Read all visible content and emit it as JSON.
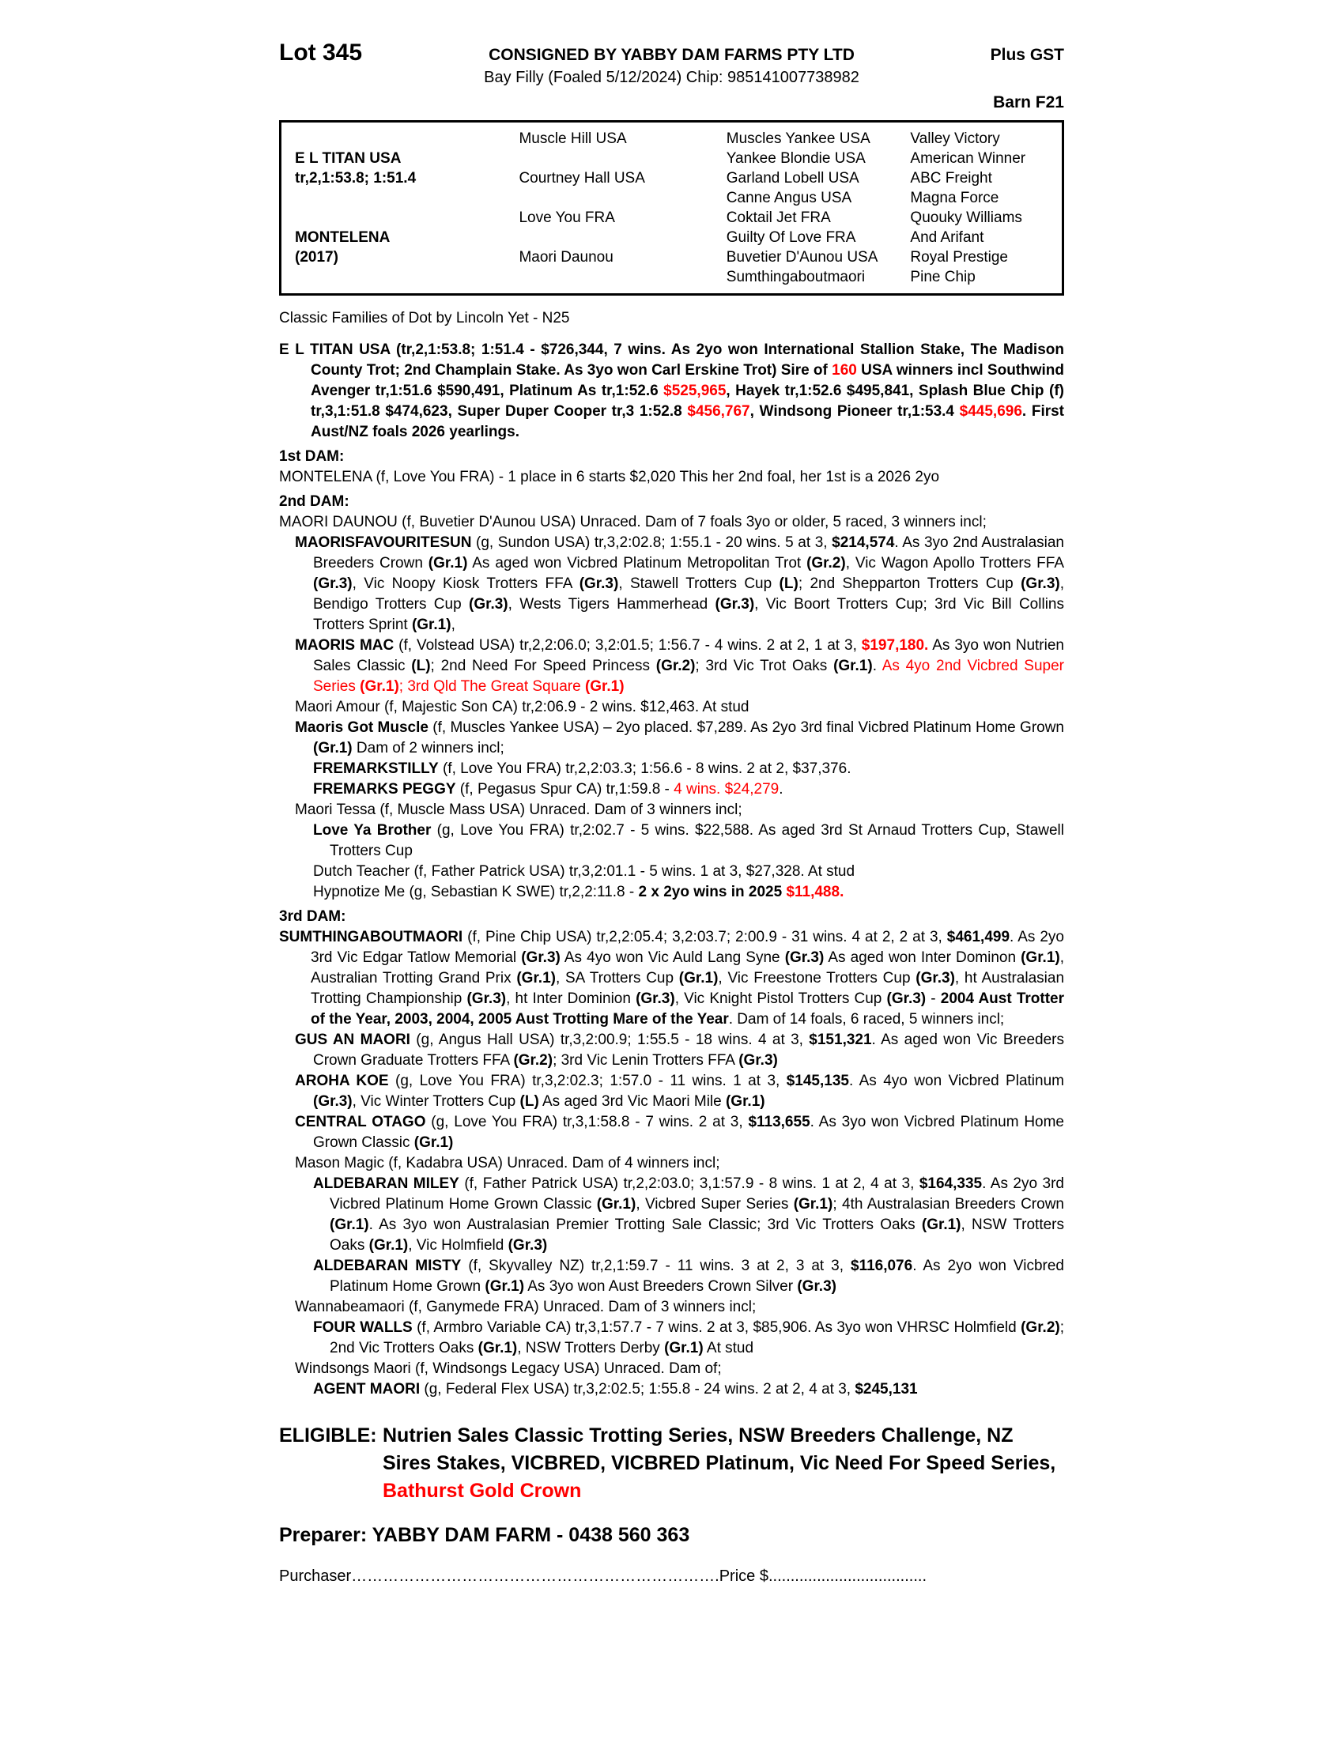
{
  "colors": {
    "red": "#ff0000",
    "text": "#000000",
    "background": "#ffffff"
  },
  "header": {
    "lot": "Lot 345",
    "consigned": "CONSIGNED BY YABBY DAM FARMS PTY LTD",
    "plus_gst": "Plus GST",
    "foal_info": "Bay Filly (Foaled 5/12/2024) Chip: 985141007738982",
    "barn": "Barn F21"
  },
  "pedigree_table": {
    "rows": [
      [
        "",
        "Muscle Hill USA",
        "Muscles Yankee USA",
        "Valley Victory"
      ],
      [
        "E L TITAN USA",
        "",
        "Yankee Blondie USA",
        "American Winner"
      ],
      [
        "tr,2,1:53.8; 1:51.4",
        "Courtney Hall USA",
        "Garland Lobell USA",
        "ABC Freight"
      ],
      [
        "",
        "",
        "Canne Angus USA",
        "Magna Force"
      ],
      [
        "",
        "Love You FRA",
        "Coktail Jet FRA",
        "Quouky Williams"
      ],
      [
        "MONTELENA",
        "",
        "Guilty Of Love FRA",
        "And Arifant"
      ],
      [
        "(2017)",
        "Maori Daunou",
        "Buvetier D'Aunou USA",
        "Royal Prestige"
      ],
      [
        "",
        "",
        "Sumthingaboutmaori",
        "Pine Chip"
      ]
    ]
  },
  "family_line": "Classic Families of Dot by Lincoln Yet - N25",
  "body_blocks": [
    {
      "type": "para",
      "ind": 0,
      "cls": "sire",
      "name": "sire-summary",
      "segments": [
        [
          "E L TITAN USA (tr,2,1:53.8; 1:51.4 - $726,344, 7 wins. As 2yo won International Stallion Stake, The Madison County Trot; 2nd Champlain Stake. As 3yo won Carl Erskine Trot) Sire of ",
          ""
        ],
        [
          "160",
          "r"
        ],
        [
          " USA winners incl Southwind Avenger tr,1:51.6 $590,491, Platinum As tr,1:52.6 ",
          ""
        ],
        [
          "$525,965",
          "r"
        ],
        [
          ", Hayek tr,1:52.6 $495,841, Splash Blue Chip (f) tr,3,1:51.8 $474,623, Super Duper Cooper tr,3 1:52.8 ",
          ""
        ],
        [
          "$456,767",
          "r"
        ],
        [
          ", Windsong Pioneer tr,1:53.4 ",
          ""
        ],
        [
          "$445,696",
          "r"
        ],
        [
          ". First Aust/NZ foals 2026 yearlings.",
          ""
        ]
      ]
    },
    {
      "type": "heading",
      "ind": 0,
      "name": "dam-heading-1",
      "segments": [
        [
          "1st DAM:",
          ""
        ]
      ]
    },
    {
      "type": "para",
      "ind": 0,
      "name": "dam-entry-montelena",
      "segments": [
        [
          "MONTELENA (f, Love You FRA) - 1 place in 6 starts $2,020 This her 2nd foal, her 1st is a 2026 2yo",
          ""
        ]
      ]
    },
    {
      "type": "heading",
      "ind": 0,
      "name": "dam-heading-2",
      "segments": [
        [
          "2nd DAM:",
          ""
        ]
      ]
    },
    {
      "type": "para",
      "ind": 0,
      "name": "dam-entry-maori-daunou",
      "segments": [
        [
          "MAORI DAUNOU (f, Buvetier D'Aunou USA) Unraced. Dam of 7 foals 3yo or older, 5 raced, 3 winners incl;",
          ""
        ]
      ]
    },
    {
      "type": "para",
      "ind": 1,
      "name": "progeny-maorisfavouritesun",
      "segments": [
        [
          "MAORISFAVOURITESUN",
          "b"
        ],
        [
          " (g, Sundon USA) tr,3,2:02.8; 1:55.1 - 20 wins. 5 at 3, ",
          ""
        ],
        [
          "$214,574",
          "b"
        ],
        [
          ". As 3yo 2nd Australasian Breeders Crown ",
          ""
        ],
        [
          "(Gr.1)",
          "b"
        ],
        [
          " As aged won Vicbred Platinum Metropolitan Trot ",
          ""
        ],
        [
          "(Gr.2)",
          "b"
        ],
        [
          ", Vic Wagon Apollo Trotters FFA ",
          ""
        ],
        [
          "(Gr.3)",
          "b"
        ],
        [
          ", Vic Noopy Kiosk Trotters FFA ",
          ""
        ],
        [
          "(Gr.3)",
          "b"
        ],
        [
          ", Stawell Trotters Cup ",
          ""
        ],
        [
          "(L)",
          "b"
        ],
        [
          "; 2nd Shepparton Trotters Cup ",
          ""
        ],
        [
          "(Gr.3)",
          "b"
        ],
        [
          ", Bendigo Trotters Cup ",
          ""
        ],
        [
          "(Gr.3)",
          "b"
        ],
        [
          ", Wests Tigers Hammerhead ",
          ""
        ],
        [
          "(Gr.3)",
          "b"
        ],
        [
          ", Vic Boort Trotters Cup; 3rd Vic Bill Collins Trotters Sprint ",
          ""
        ],
        [
          "(Gr.1)",
          "b"
        ],
        [
          ",",
          ""
        ]
      ]
    },
    {
      "type": "para",
      "ind": 1,
      "name": "progeny-maoris-mac",
      "segments": [
        [
          "MAORIS MAC",
          "b"
        ],
        [
          " (f, Volstead USA) tr,2,2:06.0; 3,2:01.5; 1:56.7 - 4 wins. 2 at 2, 1 at 3, ",
          ""
        ],
        [
          "$197,180.",
          "br"
        ],
        [
          " As 3yo won Nutrien Sales Classic ",
          ""
        ],
        [
          "(L)",
          "b"
        ],
        [
          "; 2nd Need For Speed Princess ",
          ""
        ],
        [
          "(Gr.2)",
          "b"
        ],
        [
          "; 3rd Vic Trot Oaks ",
          ""
        ],
        [
          "(Gr.1)",
          "b"
        ],
        [
          ". ",
          ""
        ],
        [
          "As 4yo 2nd Vicbred Super Series ",
          "r"
        ],
        [
          "(Gr.1)",
          "br"
        ],
        [
          "; 3rd Qld The Great Square ",
          "r"
        ],
        [
          "(Gr.1)",
          "br"
        ]
      ]
    },
    {
      "type": "para",
      "ind": 1,
      "name": "progeny-maori-amour",
      "segments": [
        [
          "Maori Amour (f, Majestic Son CA) tr,2:06.9 - 2 wins. $12,463. At stud",
          ""
        ]
      ]
    },
    {
      "type": "para",
      "ind": 1,
      "name": "progeny-maoris-got-muscle",
      "segments": [
        [
          "Maoris Got Muscle",
          "b"
        ],
        [
          " (f, Muscles Yankee USA) – 2yo placed. $7,289. As 2yo 3rd final Vicbred Platinum Home Grown ",
          ""
        ],
        [
          "(Gr.1)",
          "b"
        ],
        [
          " Dam of 2 winners incl;",
          ""
        ]
      ]
    },
    {
      "type": "para",
      "ind": 2,
      "name": "progeny-fremarkstilly",
      "segments": [
        [
          "FREMARKSTILLY",
          "b"
        ],
        [
          " (f, Love You FRA) tr,2,2:03.3; 1:56.6 - 8 wins. 2 at 2, $37,376.",
          ""
        ]
      ]
    },
    {
      "type": "para",
      "ind": 2,
      "name": "progeny-fremarks-peggy",
      "segments": [
        [
          "FREMARKS PEGGY",
          "b"
        ],
        [
          " (f, Pegasus Spur CA) tr,1:59.8 - ",
          ""
        ],
        [
          "4 wins. $24,279",
          "r"
        ],
        [
          ".",
          ""
        ]
      ]
    },
    {
      "type": "para",
      "ind": 1,
      "name": "progeny-maori-tessa",
      "segments": [
        [
          "Maori Tessa (f, Muscle Mass USA) Unraced.  Dam of 3 winners incl;",
          ""
        ]
      ]
    },
    {
      "type": "para",
      "ind": 2,
      "name": "progeny-love-ya-brother",
      "segments": [
        [
          "Love Ya Brother",
          "b"
        ],
        [
          " (g, Love You FRA) tr,2:02.7 - 5 wins. $22,588. As aged 3rd St Arnaud Trotters Cup, Stawell Trotters Cup",
          ""
        ]
      ]
    },
    {
      "type": "para",
      "ind": 2,
      "name": "progeny-dutch-teacher",
      "segments": [
        [
          "Dutch Teacher (f, Father Patrick USA) tr,3,2:01.1 - 5 wins. 1 at 3, $27,328. At stud",
          ""
        ]
      ]
    },
    {
      "type": "para",
      "ind": 2,
      "name": "progeny-hypnotize-me",
      "segments": [
        [
          "Hypnotize Me (g, Sebastian K SWE) tr,2,2:11.8 - ",
          ""
        ],
        [
          "2 x 2yo wins in 2025 ",
          "b"
        ],
        [
          "$11,488.",
          "br"
        ]
      ]
    },
    {
      "type": "heading",
      "ind": 0,
      "name": "dam-heading-3",
      "segments": [
        [
          "3rd DAM:",
          ""
        ]
      ]
    },
    {
      "type": "para",
      "ind": 0,
      "name": "dam-entry-sumthingaboutmaori",
      "segments": [
        [
          "SUMTHINGABOUTMAORI",
          "b"
        ],
        [
          " (f, Pine Chip USA) tr,2,2:05.4; 3,2:03.7; 2:00.9 - 31 wins. 4 at 2, 2 at 3, ",
          ""
        ],
        [
          "$461,499",
          "b"
        ],
        [
          ". As 2yo 3rd Vic Edgar Tatlow Memorial ",
          ""
        ],
        [
          "(Gr.3)",
          "b"
        ],
        [
          " As 4yo won Vic Auld Lang Syne ",
          ""
        ],
        [
          "(Gr.3)",
          "b"
        ],
        [
          " As aged won Inter Dominon ",
          ""
        ],
        [
          "(Gr.1)",
          "b"
        ],
        [
          ", Australian Trotting Grand Prix ",
          ""
        ],
        [
          "(Gr.1)",
          "b"
        ],
        [
          ", SA Trotters Cup ",
          ""
        ],
        [
          "(Gr.1)",
          "b"
        ],
        [
          ", Vic Freestone Trotters Cup ",
          ""
        ],
        [
          "(Gr.3)",
          "b"
        ],
        [
          ", ht Australasian Trotting Championship ",
          ""
        ],
        [
          "(Gr.3)",
          "b"
        ],
        [
          ", ht Inter Dominion ",
          ""
        ],
        [
          "(Gr.3)",
          "b"
        ],
        [
          ", Vic Knight Pistol Trotters Cup ",
          ""
        ],
        [
          "(Gr.3)",
          "b"
        ],
        [
          " - ",
          ""
        ],
        [
          "2004 Aust Trotter of the Year, 2003, 2004, 2005 Aust Trotting Mare of the Year",
          "b"
        ],
        [
          ". Dam of 14 foals, 6 raced, 5 winners incl;",
          ""
        ]
      ]
    },
    {
      "type": "para",
      "ind": 1,
      "name": "progeny-gus-an-maori",
      "segments": [
        [
          "GUS AN MAORI",
          "b"
        ],
        [
          " (g, Angus Hall USA) tr,3,2:00.9; 1:55.5 - 18 wins. 4 at 3, ",
          ""
        ],
        [
          "$151,321",
          "b"
        ],
        [
          ". As aged won Vic Breeders Crown Graduate Trotters FFA ",
          ""
        ],
        [
          "(Gr.2)",
          "b"
        ],
        [
          "; 3rd Vic Lenin Trotters FFA ",
          ""
        ],
        [
          "(Gr.3)",
          "b"
        ]
      ]
    },
    {
      "type": "para",
      "ind": 1,
      "name": "progeny-aroha-koe",
      "segments": [
        [
          "AROHA KOE",
          "b"
        ],
        [
          " (g, Love You FRA) tr,3,2:02.3; 1:57.0 - 11 wins. 1 at 3, ",
          ""
        ],
        [
          "$145,135",
          "b"
        ],
        [
          ". As 4yo won Vicbred Platinum ",
          ""
        ],
        [
          "(Gr.3)",
          "b"
        ],
        [
          ", Vic Winter Trotters Cup ",
          ""
        ],
        [
          "(L)",
          "b"
        ],
        [
          " As aged 3rd Vic Maori Mile ",
          ""
        ],
        [
          "(Gr.1)",
          "b"
        ]
      ]
    },
    {
      "type": "para",
      "ind": 1,
      "name": "progeny-central-otago",
      "segments": [
        [
          "CENTRAL OTAGO",
          "b"
        ],
        [
          " (g, Love You FRA) tr,3,1:58.8 - 7 wins. 2 at 3, ",
          ""
        ],
        [
          "$113,655",
          "b"
        ],
        [
          ". As 3yo won Vicbred Platinum Home Grown Classic ",
          ""
        ],
        [
          "(Gr.1)",
          "b"
        ]
      ]
    },
    {
      "type": "para",
      "ind": 1,
      "name": "progeny-mason-magic",
      "segments": [
        [
          "Mason Magic (f, Kadabra USA) Unraced. Dam of 4 winners incl;",
          ""
        ]
      ]
    },
    {
      "type": "para",
      "ind": 2,
      "name": "progeny-aldebaran-miley",
      "segments": [
        [
          "ALDEBARAN MILEY",
          "b"
        ],
        [
          " (f, Father Patrick USA) tr,2,2:03.0; 3,1:57.9 - 8 wins. 1 at 2, 4 at 3, ",
          ""
        ],
        [
          "$164,335",
          "b"
        ],
        [
          ". As 2yo 3rd Vicbred Platinum Home Grown Classic ",
          ""
        ],
        [
          "(Gr.1)",
          "b"
        ],
        [
          ", Vicbred Super Series ",
          ""
        ],
        [
          "(Gr.1)",
          "b"
        ],
        [
          "; 4th Australasian Breeders Crown ",
          ""
        ],
        [
          "(Gr.1)",
          "b"
        ],
        [
          ". As 3yo won Australasian Premier Trotting Sale Classic; 3rd Vic Trotters Oaks ",
          ""
        ],
        [
          "(Gr.1)",
          "b"
        ],
        [
          ", NSW Trotters Oaks ",
          ""
        ],
        [
          "(Gr.1)",
          "b"
        ],
        [
          ", Vic Holmfield ",
          ""
        ],
        [
          "(Gr.3)",
          "b"
        ]
      ]
    },
    {
      "type": "para",
      "ind": 2,
      "name": "progeny-aldebaran-misty",
      "segments": [
        [
          "ALDEBARAN MISTY",
          "b"
        ],
        [
          " (f, Skyvalley NZ) tr,2,1:59.7 - 11 wins. 3 at 2, 3 at 3, ",
          ""
        ],
        [
          "$116,076",
          "b"
        ],
        [
          ". As 2yo won Vicbred Platinum Home Grown ",
          ""
        ],
        [
          "(Gr.1)",
          "b"
        ],
        [
          " As 3yo won Aust Breeders Crown Silver ",
          ""
        ],
        [
          "(Gr.3)",
          "b"
        ]
      ]
    },
    {
      "type": "para",
      "ind": 1,
      "name": "progeny-wannabeamaori",
      "segments": [
        [
          "Wannabeamaori (f, Ganymede FRA) Unraced. Dam of 3 winners incl;",
          ""
        ]
      ]
    },
    {
      "type": "para",
      "ind": 2,
      "name": "progeny-four-walls",
      "segments": [
        [
          "FOUR WALLS",
          "b"
        ],
        [
          " (f, Armbro Variable CA) tr,3,1:57.7 - 7 wins. 2 at 3, $85,906. As 3yo won VHRSC Holmfield ",
          ""
        ],
        [
          "(Gr.2)",
          "b"
        ],
        [
          "; 2nd Vic Trotters Oaks ",
          ""
        ],
        [
          "(Gr.1)",
          "b"
        ],
        [
          ", NSW Trotters Derby ",
          ""
        ],
        [
          "(Gr.1)",
          "b"
        ],
        [
          " At stud",
          ""
        ]
      ]
    },
    {
      "type": "para",
      "ind": 1,
      "name": "progeny-windsongs-maori",
      "segments": [
        [
          "Windsongs Maori (f, Windsongs Legacy USA) Unraced. Dam of;",
          ""
        ]
      ]
    },
    {
      "type": "para",
      "ind": 2,
      "name": "progeny-agent-maori",
      "segments": [
        [
          "AGENT MAORI",
          "b"
        ],
        [
          " (g, Federal Flex USA) tr,3,2:02.5; 1:55.8 - 24 wins. 2 at 2, 4 at 3, ",
          ""
        ],
        [
          "$245,131",
          "b"
        ]
      ]
    }
  ],
  "eligible": {
    "label": "ELIGIBLE:",
    "lines": [
      "Nutrien Sales Classic Trotting Series, NSW Breeders Challenge, NZ",
      "Sires Stakes, VICBRED, VICBRED Platinum, Vic Need For Speed Series,"
    ],
    "red_line": "Bathurst Gold Crown"
  },
  "preparer": "Preparer: YABBY DAM FARM - 0438 560 363",
  "purchaser_line": {
    "left": "Purchaser",
    "dots1": "…………………………………………………………….",
    "price": "Price $",
    "dots2": "...................................."
  }
}
